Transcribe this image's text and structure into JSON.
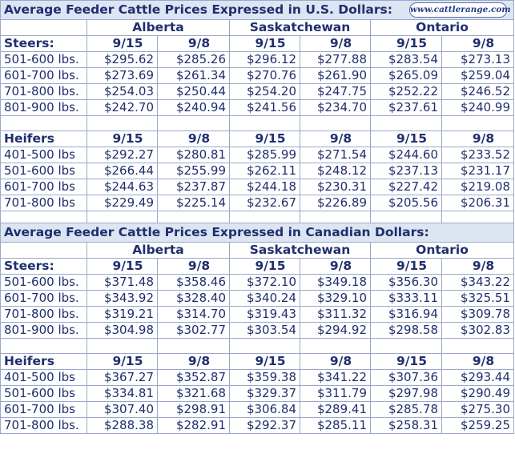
{
  "logo_text": "www.cattlerange.com",
  "usd": {
    "title": "Average Feeder Cattle Prices Expressed in U.S. Dollars:",
    "provinces": [
      "Alberta",
      "Saskatchewan",
      "Ontario"
    ],
    "dates": [
      "9/15",
      "9/8",
      "9/15",
      "9/8",
      "9/15",
      "9/8"
    ],
    "steers": {
      "label": "Steers:",
      "rows": [
        {
          "weight": "501-600 lbs.",
          "values": [
            "$295.62",
            "$285.26",
            "$296.12",
            "$277.88",
            "$283.54",
            "$273.13"
          ]
        },
        {
          "weight": "601-700 lbs.",
          "values": [
            "$273.69",
            "$261.34",
            "$270.76",
            "$261.90",
            "$265.09",
            "$259.04"
          ]
        },
        {
          "weight": "701-800 lbs.",
          "values": [
            "$254.03",
            "$250.44",
            "$254.20",
            "$247.75",
            "$252.22",
            "$246.52"
          ]
        },
        {
          "weight": "801-900 lbs.",
          "values": [
            "$242.70",
            "$240.94",
            "$241.56",
            "$234.70",
            "$237.61",
            "$240.99"
          ]
        }
      ]
    },
    "heifers": {
      "label": "Heifers",
      "rows": [
        {
          "weight": "401-500 lbs",
          "values": [
            "$292.27",
            "$280.81",
            "$285.99",
            "$271.54",
            "$244.60",
            "$233.52"
          ]
        },
        {
          "weight": "501-600 lbs",
          "values": [
            "$266.44",
            "$255.99",
            "$262.11",
            "$248.12",
            "$237.13",
            "$231.17"
          ]
        },
        {
          "weight": "601-700 lbs",
          "values": [
            "$244.63",
            "$237.87",
            "$244.18",
            "$230.31",
            "$227.42",
            "$219.08"
          ]
        },
        {
          "weight": "701-800 lbs",
          "values": [
            "$229.49",
            "$225.14",
            "$232.67",
            "$226.89",
            "$205.56",
            "$206.31"
          ]
        }
      ]
    }
  },
  "cad": {
    "title": "Average Feeder Cattle Prices Expressed in Canadian Dollars:",
    "provinces": [
      "Alberta",
      "Saskatchewan",
      "Ontario"
    ],
    "dates": [
      "9/15",
      "9/8",
      "9/15",
      "9/8",
      "9/15",
      "9/8"
    ],
    "steers": {
      "label": "Steers:",
      "rows": [
        {
          "weight": "501-600 lbs.",
          "values": [
            "$371.48",
            "$358.46",
            "$372.10",
            "$349.18",
            "$356.30",
            "$343.22"
          ]
        },
        {
          "weight": "601-700 lbs.",
          "values": [
            "$343.92",
            "$328.40",
            "$340.24",
            "$329.10",
            "$333.11",
            "$325.51"
          ]
        },
        {
          "weight": "701-800 lbs.",
          "values": [
            "$319.21",
            "$314.70",
            "$319.43",
            "$311.32",
            "$316.94",
            "$309.78"
          ]
        },
        {
          "weight": "801-900 lbs.",
          "values": [
            "$304.98",
            "$302.77",
            "$303.54",
            "$294.92",
            "$298.58",
            "$302.83"
          ]
        }
      ]
    },
    "heifers": {
      "label": "Heifers",
      "rows": [
        {
          "weight": "401-500 lbs",
          "values": [
            "$367.27",
            "$352.87",
            "$359.38",
            "$341.22",
            "$307.36",
            "$293.44"
          ]
        },
        {
          "weight": "501-600 lbs",
          "values": [
            "$334.81",
            "$321.68",
            "$329.37",
            "$311.79",
            "$297.98",
            "$290.49"
          ]
        },
        {
          "weight": "601-700 lbs",
          "values": [
            "$307.40",
            "$298.91",
            "$306.84",
            "$289.41",
            "$285.78",
            "$275.30"
          ]
        },
        {
          "weight": "701-800 lbs.",
          "values": [
            "$288.38",
            "$282.91",
            "$292.37",
            "$285.11",
            "$258.31",
            "$259.25"
          ]
        }
      ]
    }
  }
}
